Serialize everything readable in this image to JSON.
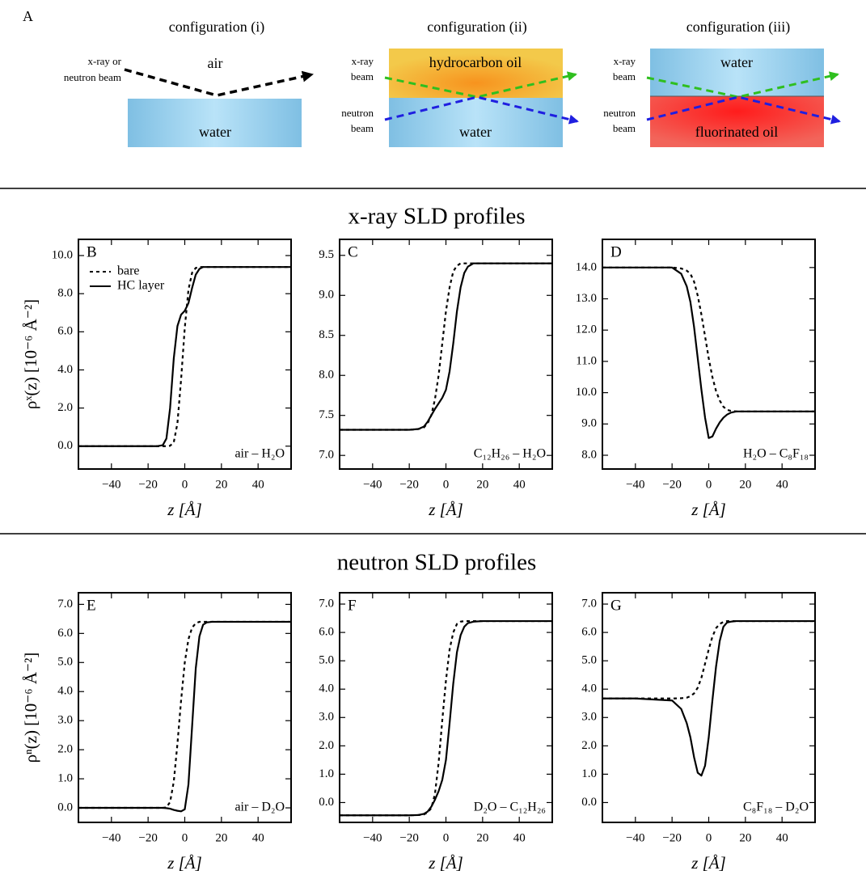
{
  "panel_a": {
    "label": "A",
    "configurations": [
      {
        "title": "configuration (i)",
        "layers": [
          "air",
          "water"
        ],
        "beams": [
          [
            "x-ray or",
            "neutron beam"
          ]
        ]
      },
      {
        "title": "configuration (ii)",
        "layers": [
          "hydrocarbon oil",
          "water"
        ],
        "beams": [
          [
            "x-ray",
            "beam"
          ],
          [
            "neutron",
            "beam"
          ]
        ]
      },
      {
        "title": "configuration (iii)",
        "layers": [
          "water",
          "fluorinated oil"
        ],
        "beams": [
          [
            "x-ray",
            "beam"
          ],
          [
            "neutron",
            "beam"
          ]
        ]
      }
    ]
  },
  "section_titles": [
    "x-ray SLD profiles",
    "neutron SLD profiles"
  ],
  "chart_data": [
    {
      "type": "line",
      "panel": "B",
      "annotation": "air – H₂O",
      "xlabel": "z [Å]",
      "ylabel": "ρˣ(z) [10⁻⁶ Å⁻²]",
      "legend": "upper left",
      "xlim": [
        -58,
        58
      ],
      "ylim": [
        -1.2,
        10.85
      ],
      "xticks": [
        {
          "value": -40,
          "label": "−40"
        },
        {
          "value": -20,
          "label": "−20"
        },
        0,
        20,
        40
      ],
      "yticks": [
        {
          "value": 0,
          "label": "0.0"
        },
        {
          "value": 2,
          "label": "2.0"
        },
        {
          "value": 4,
          "label": "4.0"
        },
        {
          "value": 6,
          "label": "6.0"
        },
        {
          "value": 8,
          "label": "8.0"
        },
        {
          "value": 10,
          "label": "10.0"
        }
      ],
      "x": [
        -58,
        -40,
        -20,
        -15,
        -12,
        -10,
        -8,
        -6,
        -4,
        -2,
        0,
        2,
        4,
        6,
        8,
        10,
        12,
        15,
        20,
        40,
        58
      ],
      "series": [
        {
          "name": "bare",
          "color": "#000000",
          "linestyle": "dashed",
          "values": [
            0,
            0,
            0,
            0,
            0,
            0,
            0.02,
            0.2,
            1.2,
            3.5,
            6.2,
            8.2,
            9.1,
            9.35,
            9.4,
            9.4,
            9.4,
            9.4,
            9.4,
            9.4,
            9.4
          ]
        },
        {
          "name": "HC layer",
          "color": "#000000",
          "linestyle": "solid",
          "values": [
            0,
            0,
            0,
            0,
            0.05,
            0.4,
            2.0,
            4.6,
            6.3,
            6.9,
            7.1,
            7.5,
            8.3,
            9.0,
            9.3,
            9.4,
            9.4,
            9.4,
            9.4,
            9.4,
            9.4
          ]
        }
      ]
    },
    {
      "type": "line",
      "panel": "C",
      "annotation": "C₁₂H₂₆ – H₂O",
      "xlabel": "z [Å]",
      "xlim": [
        -58,
        58
      ],
      "ylim": [
        6.83,
        9.7
      ],
      "xticks": [
        {
          "value": -40,
          "label": "−40"
        },
        {
          "value": -20,
          "label": "−20"
        },
        0,
        20,
        40
      ],
      "yticks": [
        {
          "value": 7,
          "label": "7.0"
        },
        7.5,
        {
          "value": 8,
          "label": "8.0"
        },
        8.5,
        {
          "value": 9,
          "label": "9.0"
        },
        9.5
      ],
      "x": [
        -58,
        -40,
        -20,
        -15,
        -12,
        -10,
        -8,
        -6,
        -4,
        -2,
        0,
        2,
        4,
        6,
        8,
        10,
        12,
        15,
        20,
        40,
        58
      ],
      "series": [
        {
          "color": "#000000",
          "linestyle": "dashed",
          "values": [
            7.32,
            7.32,
            7.32,
            7.33,
            7.35,
            7.4,
            7.5,
            7.7,
            8.0,
            8.4,
            8.8,
            9.1,
            9.3,
            9.37,
            9.4,
            9.4,
            9.4,
            9.4,
            9.4,
            9.4,
            9.4
          ]
        },
        {
          "color": "#000000",
          "linestyle": "solid",
          "values": [
            7.32,
            7.32,
            7.32,
            7.33,
            7.36,
            7.42,
            7.5,
            7.58,
            7.65,
            7.72,
            7.82,
            8.05,
            8.4,
            8.8,
            9.1,
            9.28,
            9.36,
            9.4,
            9.4,
            9.4,
            9.4
          ]
        }
      ]
    },
    {
      "type": "line",
      "panel": "D",
      "annotation": "H₂O – C₈F₁₈",
      "xlabel": "z [Å]",
      "xlim": [
        -58,
        58
      ],
      "ylim": [
        7.56,
        14.9
      ],
      "xticks": [
        {
          "value": -40,
          "label": "−40"
        },
        {
          "value": -20,
          "label": "−20"
        },
        0,
        20,
        40
      ],
      "yticks": [
        {
          "value": 8,
          "label": "8.0"
        },
        {
          "value": 9,
          "label": "9.0"
        },
        {
          "value": 10,
          "label": "10.0"
        },
        {
          "value": 11,
          "label": "11.0"
        },
        {
          "value": 12,
          "label": "12.0"
        },
        {
          "value": 13,
          "label": "13.0"
        },
        {
          "value": 14,
          "label": "14.0"
        }
      ],
      "x": [
        -58,
        -40,
        -20,
        -15,
        -12,
        -10,
        -8,
        -6,
        -4,
        -2,
        0,
        2,
        4,
        6,
        8,
        10,
        12,
        15,
        20,
        40,
        58
      ],
      "series": [
        {
          "color": "#000000",
          "linestyle": "dashed",
          "values": [
            14,
            14,
            14,
            13.97,
            13.9,
            13.8,
            13.55,
            13.1,
            12.5,
            11.8,
            11.1,
            10.5,
            10.05,
            9.75,
            9.55,
            9.45,
            9.42,
            9.4,
            9.4,
            9.4,
            9.4
          ]
        },
        {
          "color": "#000000",
          "linestyle": "solid",
          "values": [
            14,
            14,
            14,
            13.8,
            13.4,
            12.9,
            12.1,
            11.1,
            10.1,
            9.2,
            8.55,
            8.6,
            8.85,
            9.05,
            9.2,
            9.3,
            9.36,
            9.4,
            9.4,
            9.4,
            9.4
          ]
        }
      ]
    },
    {
      "type": "line",
      "panel": "E",
      "annotation": "air – D₂O",
      "xlabel": "z [Å]",
      "ylabel": "ρⁿ(z) [10⁻⁶ Å⁻²]",
      "xlim": [
        -58,
        58
      ],
      "ylim": [
        -0.5,
        7.4
      ],
      "xticks": [
        {
          "value": -40,
          "label": "−40"
        },
        {
          "value": -20,
          "label": "−20"
        },
        0,
        20,
        40
      ],
      "yticks": [
        {
          "value": 0,
          "label": "0.0"
        },
        {
          "value": 1,
          "label": "1.0"
        },
        {
          "value": 2,
          "label": "2.0"
        },
        {
          "value": 3,
          "label": "3.0"
        },
        {
          "value": 4,
          "label": "4.0"
        },
        {
          "value": 5,
          "label": "5.0"
        },
        {
          "value": 6,
          "label": "6.0"
        },
        {
          "value": 7,
          "label": "7.0"
        }
      ],
      "x": [
        -58,
        -40,
        -20,
        -15,
        -12,
        -10,
        -8,
        -6,
        -4,
        -2,
        0,
        2,
        4,
        6,
        8,
        10,
        12,
        15,
        20,
        40,
        58
      ],
      "series": [
        {
          "color": "#000000",
          "linestyle": "dashed",
          "values": [
            0,
            0,
            0,
            0,
            0,
            0.02,
            0.2,
            0.9,
            2.2,
            3.7,
            5.0,
            5.8,
            6.2,
            6.35,
            6.4,
            6.4,
            6.4,
            6.4,
            6.4,
            6.4,
            6.4
          ]
        },
        {
          "color": "#000000",
          "linestyle": "solid",
          "values": [
            0,
            0,
            0,
            0,
            0,
            -0.01,
            -0.03,
            -0.07,
            -0.1,
            -0.12,
            -0.05,
            0.8,
            2.8,
            4.8,
            5.9,
            6.3,
            6.38,
            6.4,
            6.4,
            6.4,
            6.4
          ]
        }
      ]
    },
    {
      "type": "line",
      "panel": "F",
      "annotation": "D₂O – C₁₂H₂₆",
      "xlabel": "z [Å]",
      "xlim": [
        -58,
        58
      ],
      "ylim": [
        -0.7,
        7.4
      ],
      "xticks": [
        {
          "value": -40,
          "label": "−40"
        },
        {
          "value": -20,
          "label": "−20"
        },
        0,
        20,
        40
      ],
      "yticks": [
        {
          "value": 0,
          "label": "0.0"
        },
        {
          "value": 1,
          "label": "1.0"
        },
        {
          "value": 2,
          "label": "2.0"
        },
        {
          "value": 3,
          "label": "3.0"
        },
        {
          "value": 4,
          "label": "4.0"
        },
        {
          "value": 5,
          "label": "5.0"
        },
        {
          "value": 6,
          "label": "6.0"
        },
        {
          "value": 7,
          "label": "7.0"
        }
      ],
      "x": [
        -58,
        -40,
        -20,
        -15,
        -12,
        -10,
        -8,
        -6,
        -4,
        -2,
        0,
        2,
        4,
        6,
        8,
        10,
        12,
        15,
        20,
        40,
        58
      ],
      "series": [
        {
          "color": "#000000",
          "linestyle": "dashed",
          "values": [
            -0.45,
            -0.45,
            -0.45,
            -0.44,
            -0.42,
            -0.35,
            -0.2,
            0.3,
            1.4,
            2.9,
            4.3,
            5.4,
            6.0,
            6.3,
            6.38,
            6.4,
            6.4,
            6.4,
            6.4,
            6.4,
            6.4
          ]
        },
        {
          "color": "#000000",
          "linestyle": "solid",
          "values": [
            -0.45,
            -0.45,
            -0.45,
            -0.44,
            -0.4,
            -0.32,
            -0.15,
            0.1,
            0.4,
            0.8,
            1.5,
            2.8,
            4.2,
            5.3,
            5.9,
            6.2,
            6.33,
            6.38,
            6.4,
            6.4,
            6.4
          ]
        }
      ]
    },
    {
      "type": "line",
      "panel": "G",
      "annotation": "C₈F₁₈ – D₂O",
      "xlabel": "z [Å]",
      "xlim": [
        -58,
        58
      ],
      "ylim": [
        -0.7,
        7.4
      ],
      "xticks": [
        {
          "value": -40,
          "label": "−40"
        },
        {
          "value": -20,
          "label": "−20"
        },
        0,
        20,
        40
      ],
      "yticks": [
        {
          "value": 0,
          "label": "0.0"
        },
        {
          "value": 1,
          "label": "1.0"
        },
        {
          "value": 2,
          "label": "2.0"
        },
        {
          "value": 3,
          "label": "3.0"
        },
        {
          "value": 4,
          "label": "4.0"
        },
        {
          "value": 5,
          "label": "5.0"
        },
        {
          "value": 6,
          "label": "6.0"
        },
        {
          "value": 7,
          "label": "7.0"
        }
      ],
      "x": [
        -58,
        -40,
        -20,
        -15,
        -12,
        -10,
        -8,
        -6,
        -4,
        -2,
        0,
        2,
        4,
        6,
        8,
        10,
        12,
        15,
        20,
        40,
        58
      ],
      "series": [
        {
          "color": "#000000",
          "linestyle": "dashed",
          "values": [
            3.67,
            3.67,
            3.67,
            3.68,
            3.7,
            3.75,
            3.85,
            4.05,
            4.4,
            4.9,
            5.4,
            5.85,
            6.15,
            6.3,
            6.37,
            6.4,
            6.4,
            6.4,
            6.4,
            6.4,
            6.4
          ]
        },
        {
          "color": "#000000",
          "linestyle": "solid",
          "values": [
            3.67,
            3.67,
            3.6,
            3.3,
            2.8,
            2.3,
            1.6,
            1.05,
            0.95,
            1.3,
            2.3,
            3.6,
            4.8,
            5.7,
            6.2,
            6.35,
            6.38,
            6.4,
            6.4,
            6.4,
            6.4
          ]
        }
      ]
    }
  ]
}
